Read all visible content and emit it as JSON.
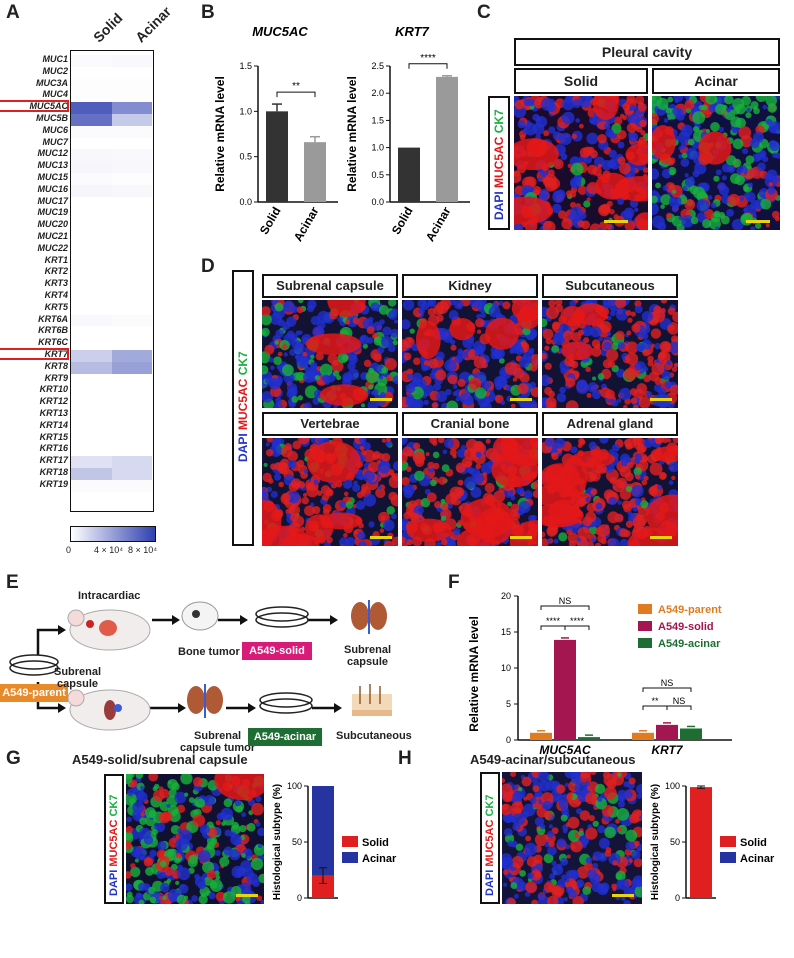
{
  "panels": {
    "A": "A",
    "B": "B",
    "C": "C",
    "D": "D",
    "E": "E",
    "F": "F",
    "G": "G",
    "H": "H"
  },
  "heatmap": {
    "columns": [
      "Solid",
      "Acinar"
    ],
    "genes": [
      "MUC1",
      "MUC2",
      "MUC3A",
      "MUC4",
      "MUC5AC",
      "MUC5B",
      "MUC6",
      "MUC7",
      "MUC12",
      "MUC13",
      "MUC15",
      "MUC16",
      "MUC17",
      "MUC19",
      "MUC20",
      "MUC21",
      "MUC22",
      "KRT1",
      "KRT2",
      "KRT3",
      "KRT4",
      "KRT5",
      "KRT6A",
      "KRT6B",
      "KRT6C",
      "KRT7",
      "KRT8",
      "KRT9",
      "KRT10",
      "KRT12",
      "KRT13",
      "KRT14",
      "KRT15",
      "KRT16",
      "KRT17",
      "KRT18",
      "KRT19"
    ],
    "values_solid": [
      0.02,
      0,
      0.01,
      0.01,
      0.85,
      0.75,
      0.02,
      0,
      0.04,
      0.05,
      0.02,
      0.05,
      0,
      0,
      0,
      0,
      0,
      0,
      0,
      0,
      0,
      0,
      0.03,
      0,
      0,
      0.25,
      0.35,
      0,
      0,
      0,
      0,
      0,
      0,
      0,
      0.15,
      0.3,
      0.02
    ],
    "values_acinar": [
      0.03,
      0,
      0.01,
      0.01,
      0.6,
      0.28,
      0.02,
      0,
      0.03,
      0.04,
      0.01,
      0.04,
      0,
      0,
      0,
      0,
      0,
      0,
      0,
      0,
      0,
      0,
      0.02,
      0,
      0,
      0.45,
      0.5,
      0,
      0,
      0,
      0,
      0,
      0,
      0,
      0.2,
      0.2,
      0.02
    ],
    "highlighted": [
      "MUC5AC",
      "KRT7"
    ],
    "colorbar": {
      "ticks": [
        "0",
        "4 × 10⁴",
        "8 × 10⁴"
      ],
      "low": "#ffffff",
      "high": "#3040b0"
    }
  },
  "chart_data": [
    {
      "type": "bar",
      "title": "MUC5AC",
      "ylabel": "Relative mRNA level",
      "categories": [
        "Solid",
        "Acinar"
      ],
      "values": [
        1.0,
        0.66
      ],
      "errors": [
        0.08,
        0.06
      ],
      "ylim": [
        0,
        1.5
      ],
      "yticks": [
        "0.0",
        "0.5",
        "1.0",
        "1.5"
      ],
      "significance": "**",
      "colors": [
        "#333333",
        "#9a9a9a"
      ]
    },
    {
      "type": "bar",
      "title": "KRT7",
      "ylabel": "Relative mRNA level",
      "categories": [
        "Solid",
        "Acinar"
      ],
      "values": [
        1.0,
        2.3
      ],
      "errors": [
        0.0,
        0.02
      ],
      "ylim": [
        0,
        2.5
      ],
      "yticks": [
        "0.0",
        "0.5",
        "1.0",
        "1.5",
        "2.0",
        "2.5"
      ],
      "significance": "****",
      "colors": [
        "#333333",
        "#9a9a9a"
      ]
    },
    {
      "type": "bar",
      "ylabel": "Relative mRNA level",
      "categories": [
        "MUC5AC",
        "KRT7"
      ],
      "ylim": [
        0,
        20
      ],
      "yticks": [
        "0",
        "5",
        "10",
        "15",
        "20"
      ],
      "series": [
        {
          "name": "A549-parent",
          "values": [
            1.0,
            1.0
          ],
          "color": "#e07b20"
        },
        {
          "name": "A549-solid",
          "values": [
            13.9,
            2.1
          ],
          "color": "#a3164f"
        },
        {
          "name": "A549-acinar",
          "values": [
            0.4,
            1.6
          ],
          "color": "#1e6e34"
        }
      ],
      "annotations": [
        "NS",
        "****",
        "****",
        "NS",
        "**",
        "NS"
      ]
    },
    {
      "type": "bar",
      "ylabel": "Histological subtype (%)",
      "categories": [
        ""
      ],
      "ylim": [
        0,
        100
      ],
      "yticks": [
        "0",
        "50",
        "100"
      ],
      "series": [
        {
          "name": "Solid",
          "values": [
            20
          ],
          "color": "#e02020"
        },
        {
          "name": "Acinar",
          "values": [
            80
          ],
          "color": "#2534a0"
        }
      ]
    },
    {
      "type": "bar",
      "ylabel": "Histological subtype (%)",
      "categories": [
        ""
      ],
      "ylim": [
        0,
        100
      ],
      "yticks": [
        "0",
        "50",
        "100"
      ],
      "series": [
        {
          "name": "Solid",
          "values": [
            99
          ],
          "color": "#e02020"
        },
        {
          "name": "Acinar",
          "values": [
            0
          ],
          "color": "#2534a0"
        }
      ]
    }
  ],
  "panelC": {
    "header": "Pleural cavity",
    "solid": "Solid",
    "acinar": "Acinar"
  },
  "stain": {
    "dapi": "DAPI",
    "muc": "MUC5AC",
    "ck7": "CK7"
  },
  "panelD": {
    "sites": [
      "Subrenal capsule",
      "Kidney",
      "Subcutaneous",
      "Vertebrae",
      "Cranial bone",
      "Adrenal gland"
    ]
  },
  "panelE": {
    "intracardiac": "Intracardiac",
    "parent": "A549-parent",
    "subrenal": "Subrenal\ncapsule",
    "bone_tumor": "Bone tumor",
    "solid": "A549-solid",
    "subrenal_capsule": "Subrenal\ncapsule",
    "subrenal_tumor": "Subrenal\ncapsule tumor",
    "acinar": "A549-acinar",
    "subcutaneous": "Subcutaneous"
  },
  "panelG": {
    "title": "A549-solid/subrenal capsule"
  },
  "panelH": {
    "title": "A549-acinar/subcutaneous"
  },
  "colors": {
    "dapi": "#2233cc",
    "muc": "#e01818",
    "ck7": "#19b040",
    "scale": "#e8d40c",
    "solid_tag": "#d81b78",
    "acinar_tag": "#1e6e34",
    "parent_tag": "#e88a2a"
  }
}
